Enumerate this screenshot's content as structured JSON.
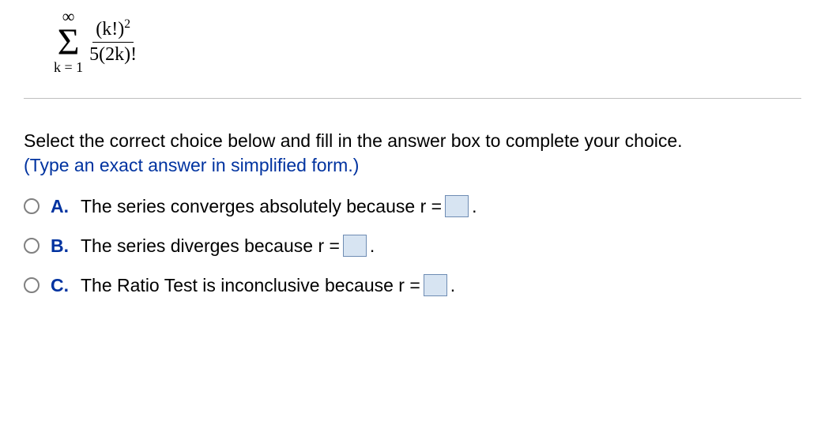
{
  "formula": {
    "sigma_upper": "∞",
    "sigma_symbol": "Σ",
    "sigma_lower": "k = 1",
    "numerator_base": "(k!)",
    "numerator_exp": "2",
    "denominator": "5(2k)!"
  },
  "instruction_text": "Select the correct choice below and fill in the answer box to complete your choice.",
  "hint_text": "(Type an exact answer in simplified form.)",
  "choices": {
    "a": {
      "label": "A.",
      "prefix": "The series converges absolutely because r =",
      "suffix": "."
    },
    "b": {
      "label": "B.",
      "prefix": "The series diverges because r =",
      "suffix": "."
    },
    "c": {
      "label": "C.",
      "prefix": "The Ratio Test is inconclusive because r =",
      "suffix": "."
    }
  },
  "colors": {
    "hint_color": "#0033a0",
    "label_color": "#0033a0",
    "box_bg": "#d7e4f2",
    "box_border": "#6e8cb3",
    "radio_border": "#808080",
    "divider": "#bfbfbf"
  }
}
